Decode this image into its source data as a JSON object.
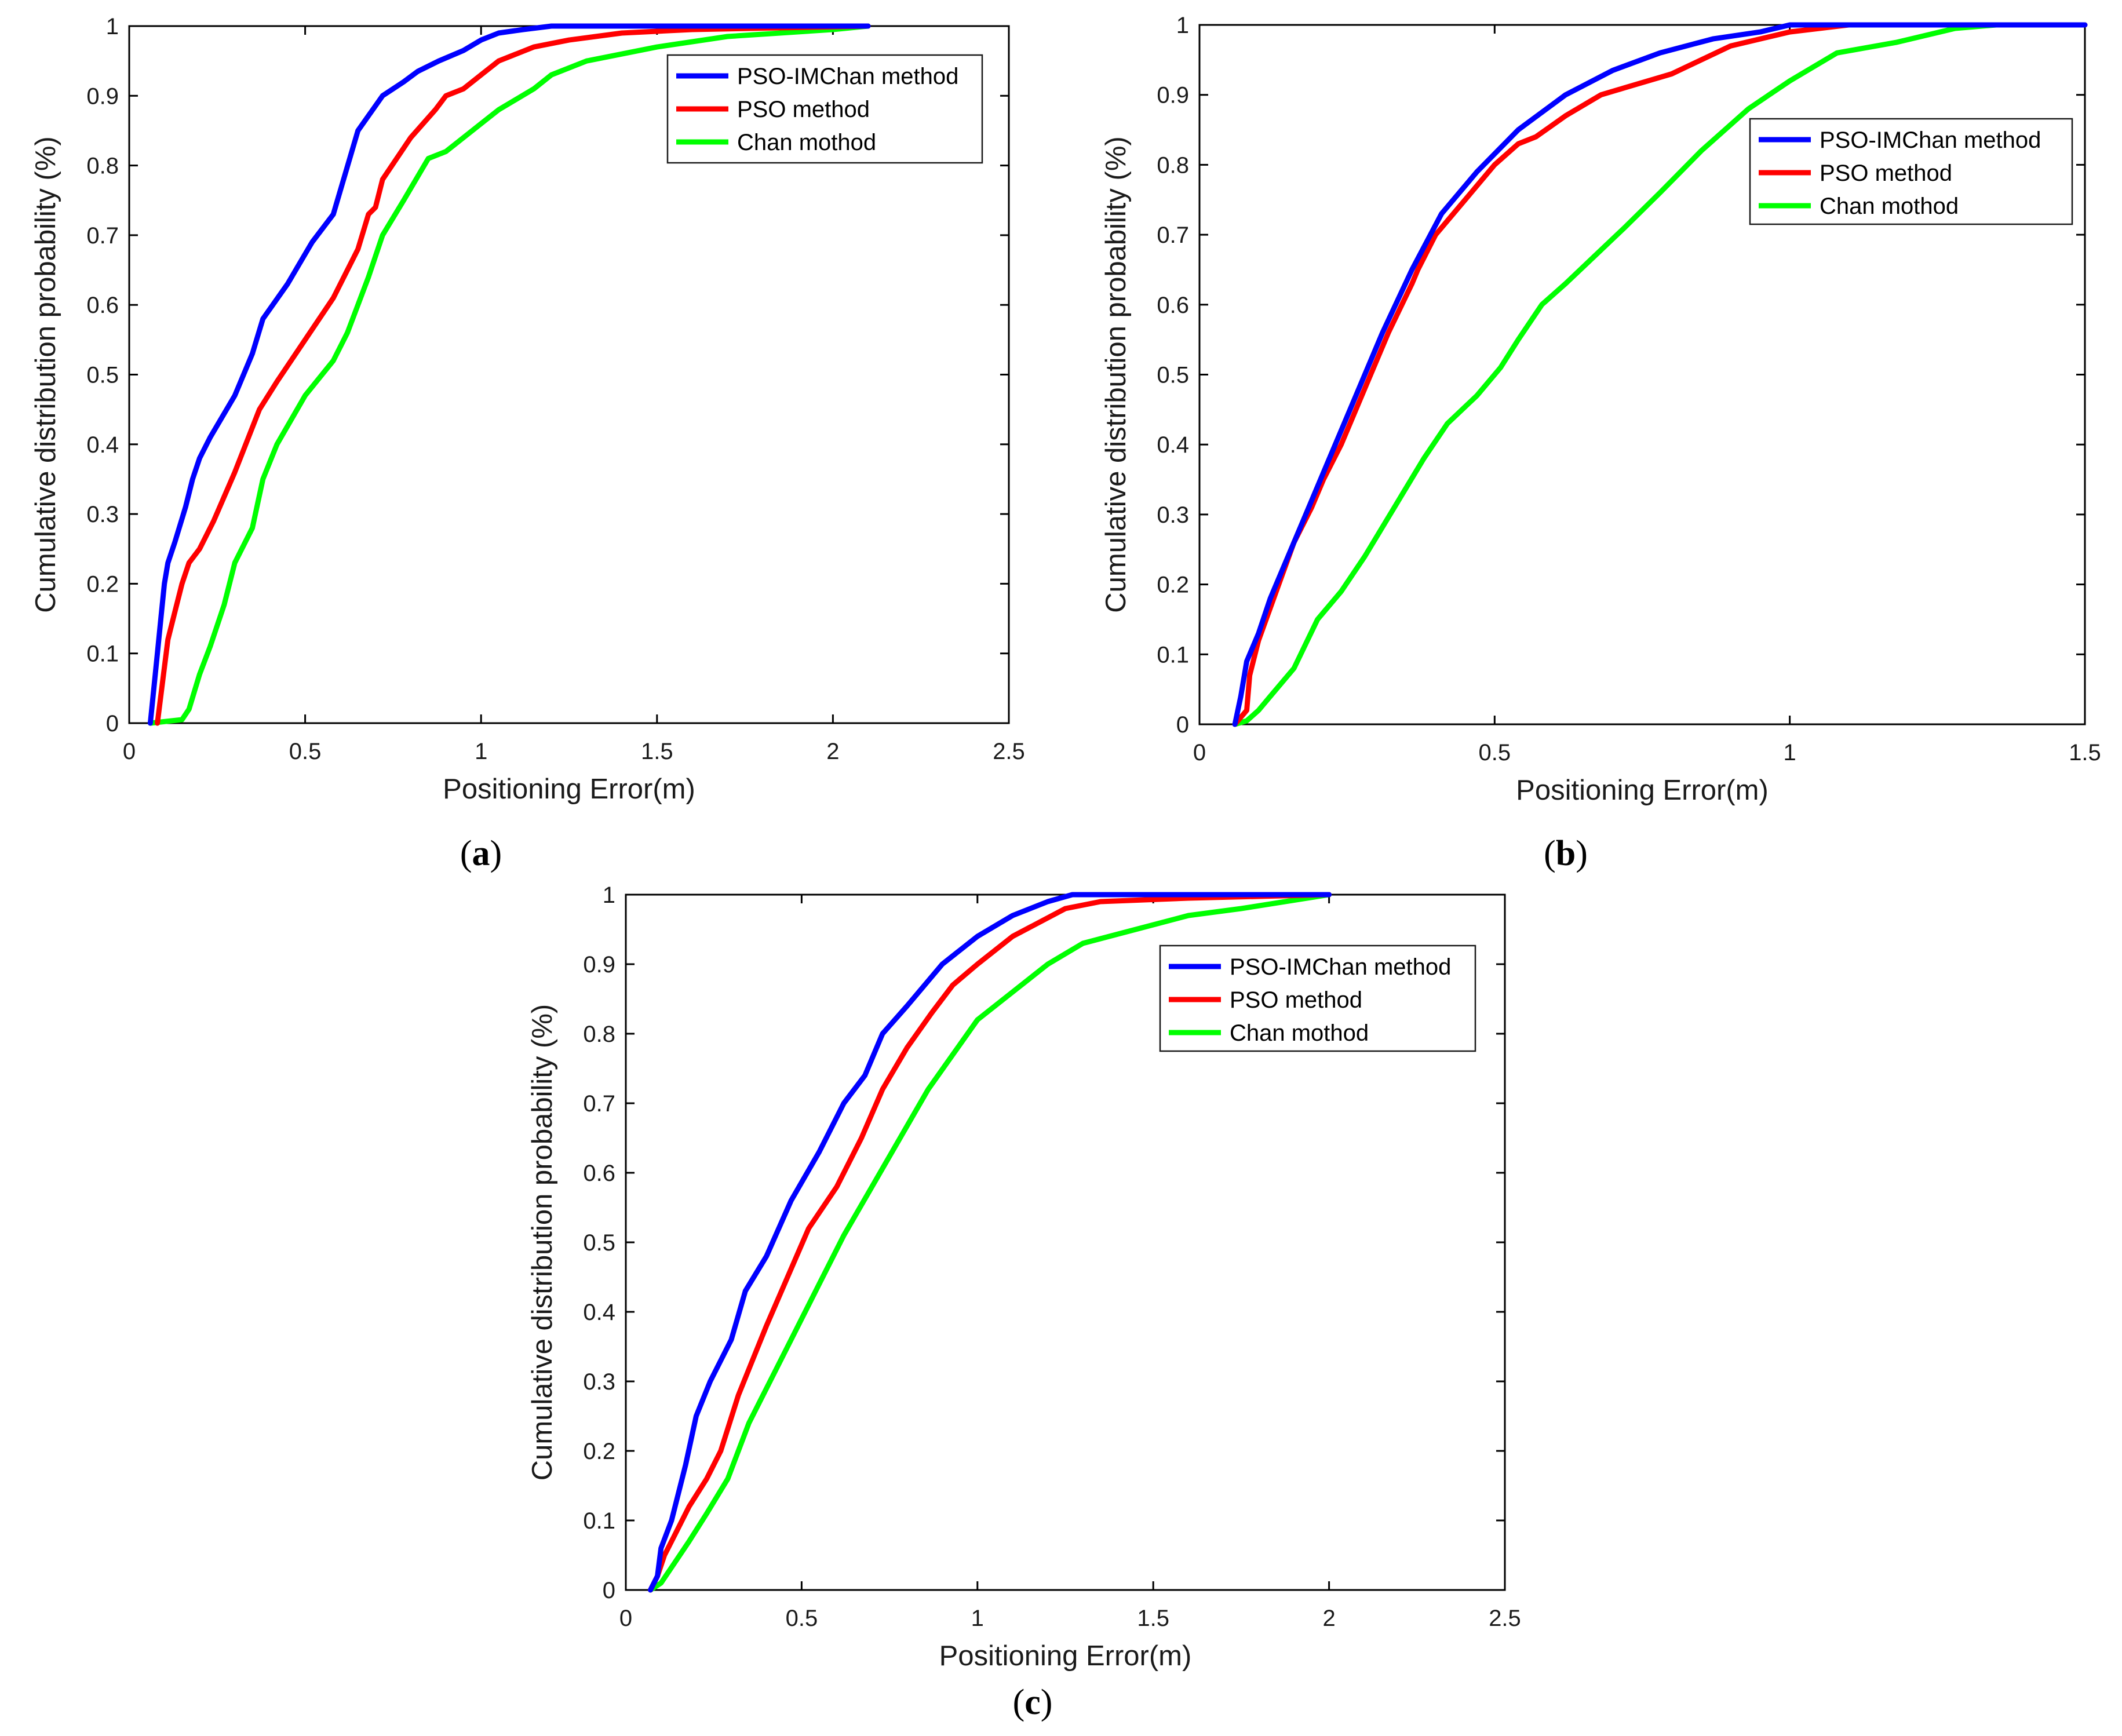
{
  "chart_data": [
    {
      "type": "line",
      "panel_label": "a",
      "title": "",
      "xlabel": "Positioning Error(m)",
      "ylabel": "Cumulative distribution probability (%)",
      "xlim": [
        0,
        2.5
      ],
      "ylim": [
        0,
        1
      ],
      "xticks": [
        0,
        0.5,
        1,
        1.5,
        2,
        2.5
      ],
      "xtick_labels": [
        "0",
        "0.5",
        "1",
        "1.5",
        "2",
        "2.5"
      ],
      "yticks": [
        0,
        0.1,
        0.2,
        0.3,
        0.4,
        0.5,
        0.6,
        0.7,
        0.8,
        0.9,
        1
      ],
      "ytick_labels": [
        "0",
        "0.1",
        "0.2",
        "0.3",
        "0.4",
        "0.5",
        "0.6",
        "0.7",
        "0.8",
        "0.9",
        "1"
      ],
      "grid": false,
      "legend_position": "top-right",
      "series": [
        {
          "name": "PSO-IMChan method",
          "color": "#0000ff",
          "x": [
            0.06,
            0.08,
            0.09,
            0.1,
            0.11,
            0.13,
            0.16,
            0.18,
            0.2,
            0.23,
            0.3,
            0.35,
            0.38,
            0.45,
            0.52,
            0.58,
            0.65,
            0.72,
            0.78,
            0.82,
            0.88,
            0.95,
            1.0,
            1.05,
            1.12,
            1.2,
            1.3,
            1.5,
            2.1
          ],
          "y": [
            0,
            0.1,
            0.15,
            0.2,
            0.23,
            0.26,
            0.31,
            0.35,
            0.38,
            0.41,
            0.47,
            0.53,
            0.58,
            0.63,
            0.69,
            0.73,
            0.85,
            0.9,
            0.92,
            0.935,
            0.95,
            0.965,
            0.98,
            0.99,
            0.995,
            1.0,
            1.0,
            1.0,
            1.0
          ]
        },
        {
          "name": "PSO method",
          "color": "#ff0000",
          "x": [
            0.08,
            0.1,
            0.11,
            0.13,
            0.15,
            0.17,
            0.2,
            0.24,
            0.3,
            0.37,
            0.42,
            0.5,
            0.58,
            0.65,
            0.68,
            0.7,
            0.72,
            0.8,
            0.87,
            0.9,
            0.95,
            1.0,
            1.05,
            1.15,
            1.25,
            1.4,
            1.6,
            2.1
          ],
          "y": [
            0,
            0.08,
            0.12,
            0.16,
            0.2,
            0.23,
            0.25,
            0.29,
            0.36,
            0.45,
            0.49,
            0.55,
            0.61,
            0.68,
            0.73,
            0.74,
            0.78,
            0.84,
            0.88,
            0.9,
            0.91,
            0.93,
            0.95,
            0.97,
            0.98,
            0.99,
            0.995,
            1.0
          ]
        },
        {
          "name": "Chan mothod",
          "color": "#00ff00",
          "x": [
            0.06,
            0.15,
            0.17,
            0.2,
            0.23,
            0.27,
            0.3,
            0.35,
            0.38,
            0.42,
            0.5,
            0.58,
            0.62,
            0.68,
            0.72,
            0.78,
            0.85,
            0.9,
            0.95,
            1.0,
            1.05,
            1.15,
            1.2,
            1.3,
            1.5,
            1.7,
            2.0,
            2.1
          ],
          "y": [
            0,
            0.005,
            0.02,
            0.07,
            0.11,
            0.17,
            0.23,
            0.28,
            0.35,
            0.4,
            0.47,
            0.52,
            0.56,
            0.64,
            0.7,
            0.75,
            0.81,
            0.82,
            0.84,
            0.86,
            0.88,
            0.91,
            0.93,
            0.95,
            0.97,
            0.985,
            0.995,
            1.0
          ]
        }
      ]
    },
    {
      "type": "line",
      "panel_label": "b",
      "title": "",
      "xlabel": "Positioning Error(m)",
      "ylabel": "Cumulative distribution probability (%)",
      "xlim": [
        0,
        1.5
      ],
      "ylim": [
        0,
        1
      ],
      "xticks": [
        0,
        0.5,
        1,
        1.5
      ],
      "xtick_labels": [
        "0",
        "0.5",
        "1",
        "1.5"
      ],
      "yticks": [
        0,
        0.1,
        0.2,
        0.3,
        0.4,
        0.5,
        0.6,
        0.7,
        0.8,
        0.9,
        1
      ],
      "ytick_labels": [
        "0",
        "0.1",
        "0.2",
        "0.3",
        "0.4",
        "0.5",
        "0.6",
        "0.7",
        "0.8",
        "0.9",
        "1"
      ],
      "grid": false,
      "legend_position": "top-right",
      "series": [
        {
          "name": "PSO-IMChan method",
          "color": "#0000ff",
          "x": [
            0.06,
            0.07,
            0.08,
            0.1,
            0.12,
            0.15,
            0.18,
            0.22,
            0.26,
            0.31,
            0.36,
            0.41,
            0.47,
            0.54,
            0.62,
            0.7,
            0.78,
            0.87,
            0.95,
            1.0,
            1.1,
            1.3,
            1.5
          ],
          "y": [
            0,
            0.04,
            0.09,
            0.13,
            0.18,
            0.24,
            0.3,
            0.38,
            0.46,
            0.56,
            0.65,
            0.73,
            0.79,
            0.85,
            0.9,
            0.935,
            0.96,
            0.98,
            0.99,
            1.0,
            1.0,
            1.0,
            1.0
          ]
        },
        {
          "name": "PSO method",
          "color": "#ff0000",
          "x": [
            0.06,
            0.08,
            0.085,
            0.1,
            0.13,
            0.16,
            0.19,
            0.21,
            0.24,
            0.28,
            0.32,
            0.36,
            0.37,
            0.4,
            0.45,
            0.5,
            0.54,
            0.57,
            0.62,
            0.68,
            0.72,
            0.8,
            0.9,
            1.0,
            1.1,
            1.3,
            1.5
          ],
          "y": [
            0,
            0.02,
            0.07,
            0.12,
            0.19,
            0.26,
            0.31,
            0.35,
            0.4,
            0.48,
            0.56,
            0.63,
            0.65,
            0.7,
            0.75,
            0.8,
            0.83,
            0.84,
            0.87,
            0.9,
            0.91,
            0.93,
            0.97,
            0.99,
            1.0,
            1.0,
            1.0
          ]
        },
        {
          "name": "Chan mothod",
          "color": "#00ff00",
          "x": [
            0.06,
            0.08,
            0.1,
            0.12,
            0.16,
            0.2,
            0.24,
            0.28,
            0.33,
            0.38,
            0.42,
            0.47,
            0.51,
            0.54,
            0.58,
            0.62,
            0.67,
            0.72,
            0.78,
            0.85,
            0.93,
            1.0,
            1.08,
            1.18,
            1.28,
            1.35,
            1.5
          ],
          "y": [
            0,
            0.005,
            0.02,
            0.04,
            0.08,
            0.15,
            0.19,
            0.24,
            0.31,
            0.38,
            0.43,
            0.47,
            0.51,
            0.55,
            0.6,
            0.63,
            0.67,
            0.71,
            0.76,
            0.82,
            0.88,
            0.92,
            0.96,
            0.975,
            0.995,
            1.0,
            1.0
          ]
        }
      ]
    },
    {
      "type": "line",
      "panel_label": "c",
      "title": "",
      "xlabel": "Positioning Error(m)",
      "ylabel": "Cumulative distribution probability (%)",
      "xlim": [
        0,
        2.5
      ],
      "ylim": [
        0,
        1
      ],
      "xticks": [
        0,
        0.5,
        1,
        1.5,
        2,
        2.5
      ],
      "xtick_labels": [
        "0",
        "0.5",
        "1",
        "1.5",
        "2",
        "2.5"
      ],
      "yticks": [
        0,
        0.1,
        0.2,
        0.3,
        0.4,
        0.5,
        0.6,
        0.7,
        0.8,
        0.9,
        1
      ],
      "ytick_labels": [
        "0",
        "0.1",
        "0.2",
        "0.3",
        "0.4",
        "0.5",
        "0.6",
        "0.7",
        "0.8",
        "0.9",
        "1"
      ],
      "grid": false,
      "legend_position": "top-right",
      "series": [
        {
          "name": "PSO-IMChan method",
          "color": "#0000ff",
          "x": [
            0.07,
            0.09,
            0.1,
            0.13,
            0.17,
            0.2,
            0.24,
            0.3,
            0.34,
            0.4,
            0.47,
            0.55,
            0.62,
            0.68,
            0.73,
            0.8,
            0.9,
            1.0,
            1.1,
            1.2,
            1.27,
            1.5,
            2.0
          ],
          "y": [
            0,
            0.02,
            0.06,
            0.1,
            0.18,
            0.25,
            0.3,
            0.36,
            0.43,
            0.48,
            0.56,
            0.63,
            0.7,
            0.74,
            0.8,
            0.84,
            0.9,
            0.94,
            0.97,
            0.99,
            1.0,
            1.0,
            1.0
          ]
        },
        {
          "name": "PSO method",
          "color": "#ff0000",
          "x": [
            0.07,
            0.09,
            0.11,
            0.14,
            0.18,
            0.23,
            0.27,
            0.32,
            0.36,
            0.4,
            0.46,
            0.52,
            0.6,
            0.67,
            0.73,
            0.8,
            0.87,
            0.93,
            1.0,
            1.1,
            1.25,
            1.35,
            1.6,
            2.0
          ],
          "y": [
            0,
            0.02,
            0.05,
            0.08,
            0.12,
            0.16,
            0.2,
            0.28,
            0.33,
            0.38,
            0.45,
            0.52,
            0.58,
            0.65,
            0.72,
            0.78,
            0.83,
            0.87,
            0.9,
            0.94,
            0.98,
            0.99,
            0.995,
            1.0
          ]
        },
        {
          "name": "Chan mothod",
          "color": "#00ff00",
          "x": [
            0.07,
            0.1,
            0.14,
            0.18,
            0.23,
            0.29,
            0.35,
            0.42,
            0.48,
            0.55,
            0.62,
            0.7,
            0.78,
            0.86,
            0.93,
            1.0,
            1.1,
            1.2,
            1.3,
            1.45,
            1.6,
            1.75,
            2.0
          ],
          "y": [
            0,
            0.01,
            0.04,
            0.07,
            0.11,
            0.16,
            0.24,
            0.31,
            0.37,
            0.44,
            0.51,
            0.58,
            0.65,
            0.72,
            0.77,
            0.82,
            0.86,
            0.9,
            0.93,
            0.95,
            0.97,
            0.98,
            1.0
          ]
        }
      ]
    }
  ]
}
